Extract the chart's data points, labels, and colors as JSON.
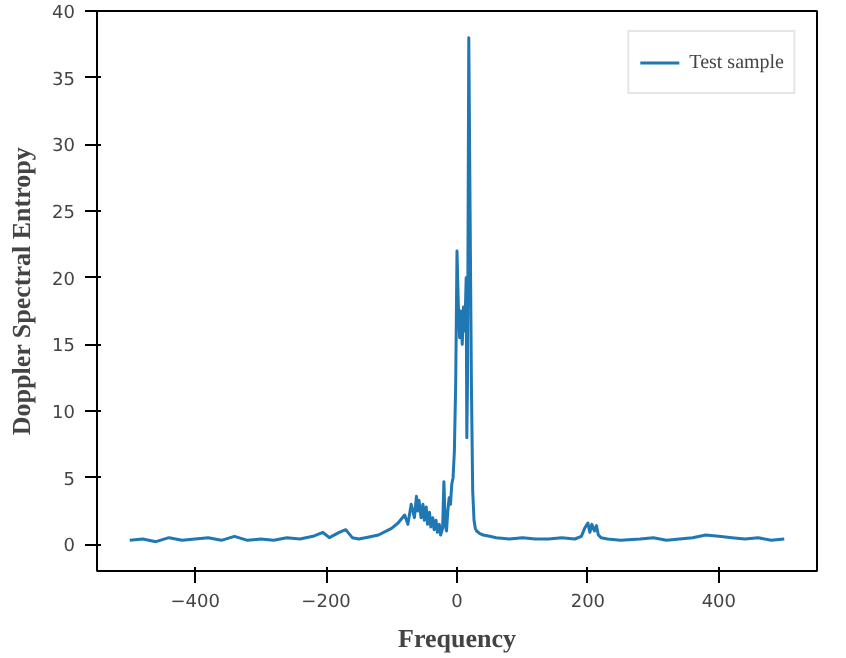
{
  "chart_data": {
    "type": "line",
    "xlabel": "Frequency",
    "ylabel": "Doppler Spectral Entropy",
    "xlim": [
      -550,
      550
    ],
    "ylim": [
      -2,
      40
    ],
    "xticks": [
      -400,
      -200,
      0,
      200,
      400
    ],
    "yticks": [
      0,
      5,
      10,
      15,
      20,
      25,
      30,
      35,
      40
    ],
    "legend": "top right",
    "grid": false,
    "series": [
      {
        "name": "Test sample",
        "color": "#1f77b4",
        "x": [
          -500,
          -480,
          -460,
          -440,
          -420,
          -400,
          -380,
          -360,
          -340,
          -320,
          -300,
          -280,
          -260,
          -240,
          -220,
          -205,
          -200,
          -195,
          -180,
          -170,
          -165,
          -160,
          -150,
          -140,
          -120,
          -100,
          -90,
          -80,
          -75,
          -70,
          -65,
          -62,
          -60,
          -58,
          -55,
          -52,
          -50,
          -47,
          -45,
          -42,
          -40,
          -37,
          -35,
          -32,
          -30,
          -27,
          -25,
          -22,
          -20,
          -18,
          -16,
          -14,
          -12,
          -10,
          -8,
          -6,
          -4,
          -2,
          0,
          2,
          4,
          6,
          8,
          10,
          12,
          14,
          15,
          16,
          18,
          20,
          22,
          24,
          26,
          28,
          30,
          35,
          40,
          50,
          60,
          80,
          100,
          120,
          140,
          160,
          180,
          190,
          195,
          200,
          203,
          206,
          210,
          213,
          216,
          220,
          230,
          250,
          280,
          300,
          320,
          340,
          360,
          380,
          400,
          420,
          440,
          460,
          480,
          500
        ],
        "values": [
          0.3,
          0.4,
          0.2,
          0.5,
          0.3,
          0.4,
          0.5,
          0.3,
          0.6,
          0.3,
          0.4,
          0.3,
          0.5,
          0.4,
          0.6,
          0.9,
          0.7,
          0.5,
          0.9,
          1.1,
          0.8,
          0.5,
          0.4,
          0.5,
          0.7,
          1.2,
          1.6,
          2.2,
          1.5,
          3.0,
          2.0,
          3.6,
          2.5,
          3.3,
          2.0,
          3.0,
          1.8,
          2.8,
          1.5,
          2.4,
          1.3,
          2.0,
          1.1,
          1.8,
          0.9,
          1.5,
          0.7,
          1.2,
          4.7,
          1.5,
          1.0,
          2.5,
          3.5,
          3.0,
          4.5,
          5.0,
          7.0,
          12.0,
          22.0,
          18.0,
          15.5,
          17.5,
          15.0,
          17.8,
          16.0,
          20.0,
          8.0,
          12.0,
          38.0,
          25.0,
          12.0,
          4.0,
          1.8,
          1.2,
          1.0,
          0.8,
          0.7,
          0.6,
          0.5,
          0.4,
          0.5,
          0.4,
          0.4,
          0.5,
          0.4,
          0.6,
          1.2,
          1.6,
          0.9,
          1.5,
          1.0,
          1.4,
          0.7,
          0.5,
          0.4,
          0.3,
          0.4,
          0.5,
          0.3,
          0.4,
          0.5,
          0.7,
          0.6,
          0.5,
          0.4,
          0.5,
          0.3,
          0.4
        ]
      }
    ]
  }
}
